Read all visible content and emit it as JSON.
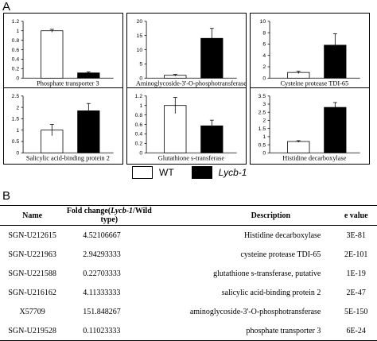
{
  "panel_a_label": "A",
  "panel_b_label": "B",
  "colors": {
    "wt": "#ffffff",
    "lycb": "#000000",
    "axis": "#000000"
  },
  "legend": {
    "wt_label": "WT",
    "lycb_label": "Lycb-1"
  },
  "chart_data": [
    {
      "type": "bar",
      "title": "Phosphate transporter 3",
      "categories": [
        "WT",
        "Lycb-1"
      ],
      "values": [
        1.0,
        0.11
      ],
      "errors": [
        0.03,
        0.02
      ],
      "ylim": [
        0,
        1.2
      ],
      "yticks": [
        "0",
        "0.2",
        "0.4",
        "0.6",
        "0.8",
        "1",
        "1.2"
      ]
    },
    {
      "type": "bar",
      "title": "Aminoglycoside-3'-O-phosphotransferase",
      "categories": [
        "WT",
        "Lycb-1"
      ],
      "values": [
        1.0,
        14.0
      ],
      "errors": [
        0.3,
        3.5
      ],
      "ylim": [
        0,
        20
      ],
      "yticks": [
        "0",
        "5",
        "10",
        "15",
        "20"
      ]
    },
    {
      "type": "bar",
      "title": "Cysteine protease TDI-65",
      "categories": [
        "WT",
        "Lycb-1"
      ],
      "values": [
        1.0,
        5.8
      ],
      "errors": [
        0.2,
        2.0
      ],
      "ylim": [
        0,
        10
      ],
      "yticks": [
        "0",
        "2",
        "4",
        "6",
        "8",
        "10"
      ]
    },
    {
      "type": "bar",
      "title": "Salicylic acid-binding protein 2",
      "categories": [
        "WT",
        "Lycb-1"
      ],
      "values": [
        1.0,
        1.85
      ],
      "errors": [
        0.25,
        0.32
      ],
      "ylim": [
        0,
        2.5
      ],
      "yticks": [
        "0",
        "0.5",
        "1",
        "1.5",
        "2",
        "2.5"
      ]
    },
    {
      "type": "bar",
      "title": "Glutathione s-transferase",
      "categories": [
        "WT",
        "Lycb-1"
      ],
      "values": [
        1.0,
        0.57
      ],
      "errors": [
        0.17,
        0.12
      ],
      "ylim": [
        0,
        1.2
      ],
      "yticks": [
        "0",
        "0.2",
        "0.4",
        "0.6",
        "0.8",
        "1",
        "1.2"
      ]
    },
    {
      "type": "bar",
      "title": "Histidine decarboxylase",
      "categories": [
        "WT",
        "Lycb-1"
      ],
      "values": [
        0.7,
        2.8
      ],
      "errors": [
        0.05,
        0.3
      ],
      "ylim": [
        0,
        3.5
      ],
      "yticks": [
        "0",
        "0.5",
        "1",
        "1.5",
        "2",
        "2.5",
        "3",
        "3.5"
      ]
    }
  ],
  "table": {
    "headers": {
      "name": "Name",
      "fold_prefix": "Fold change(",
      "fold_italic": "Lycb-1",
      "fold_suffix": "/Wild type)",
      "description": "Description",
      "evalue": "e value"
    },
    "rows": [
      {
        "name": "SGN-U212615",
        "fold": "4.52106667",
        "description": "Histidine decarboxylase",
        "evalue": "3E-81"
      },
      {
        "name": "SGN-U221963",
        "fold": "2.94293333",
        "description": "cysteine protease TDI-65",
        "evalue": "2E-101"
      },
      {
        "name": "SGN-U221588",
        "fold": "0.22703333",
        "description": "glutathione s-transferase, putative",
        "evalue": "1E-19"
      },
      {
        "name": "SGN-U216162",
        "fold": "4.11333333",
        "description": "salicylic acid-binding protein 2",
        "evalue": "2E-47"
      },
      {
        "name": "X57709",
        "fold": "151.848267",
        "description": "aminoglycoside-3'-O-phosphotransferase",
        "evalue": "5E-150"
      },
      {
        "name": "SGN-U219528",
        "fold": "0.11023333",
        "description": "phosphate transporter 3",
        "evalue": "6E-24"
      }
    ]
  }
}
